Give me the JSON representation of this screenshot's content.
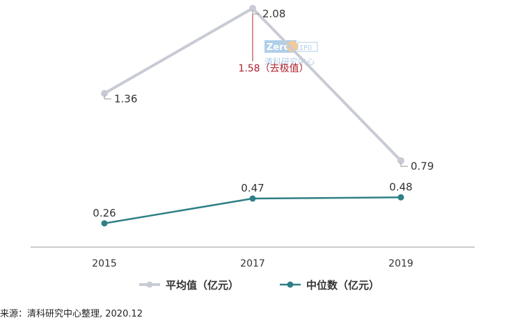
{
  "chart_data": {
    "type": "line",
    "categories": [
      "2015",
      "2017",
      "2019"
    ],
    "series": [
      {
        "name": "平均值（亿元）",
        "values": [
          1.36,
          2.08,
          0.79
        ],
        "labels": [
          "1.36",
          "2.08",
          "0.79"
        ],
        "color": "#c8cbd4"
      },
      {
        "name": "中位数（亿元）",
        "values": [
          0.26,
          0.47,
          0.48
        ],
        "labels": [
          "0.26",
          "0.47",
          "0.48"
        ],
        "color": "#2f7f86"
      }
    ],
    "annotation": {
      "text": "1.58（去极值）",
      "category": "2017",
      "value": 1.58,
      "color": "#b0202b"
    },
    "watermark": {
      "logo_text": "Zero2IPO",
      "sub_text": "清科研究中心"
    },
    "ylim": [
      0,
      2.08
    ],
    "grid": false,
    "legend_position": "bottom"
  },
  "source_text": "来源：清科研究中心整理, 2020.12"
}
